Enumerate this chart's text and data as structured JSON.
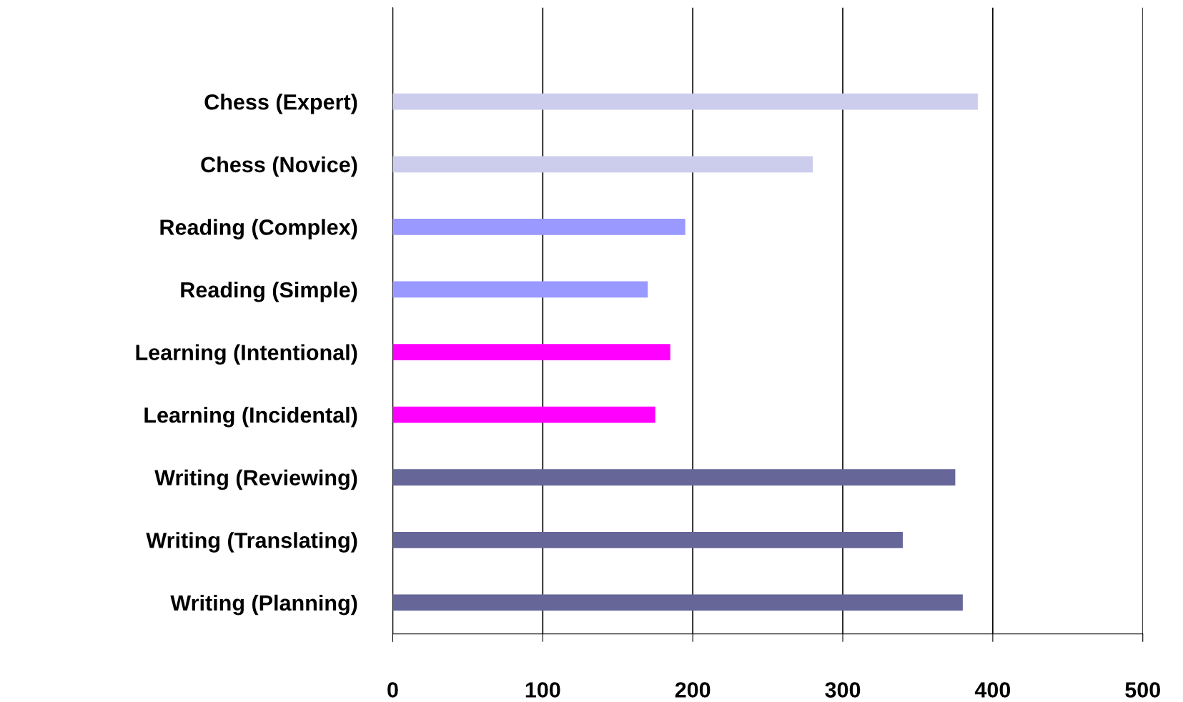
{
  "chart_data": {
    "type": "bar",
    "orientation": "horizontal",
    "categories": [
      "Chess (Expert)",
      "Chess (Novice)",
      "Reading (Complex)",
      "Reading (Simple)",
      "Learning (Intentional)",
      "Learning (Incidental)",
      "Writing (Reviewing)",
      "Writing (Translating)",
      "Writing (Planning)"
    ],
    "values": [
      390,
      280,
      195,
      170,
      185,
      175,
      375,
      340,
      380
    ],
    "colors": [
      "#ccccec",
      "#ccccec",
      "#9999ff",
      "#9999ff",
      "#ff00ff",
      "#ff00ff",
      "#666699",
      "#666699",
      "#666699"
    ],
    "xlim": [
      0,
      500
    ],
    "xticks": [
      0,
      100,
      200,
      300,
      400,
      500
    ],
    "grid": "x",
    "legend": false
  }
}
